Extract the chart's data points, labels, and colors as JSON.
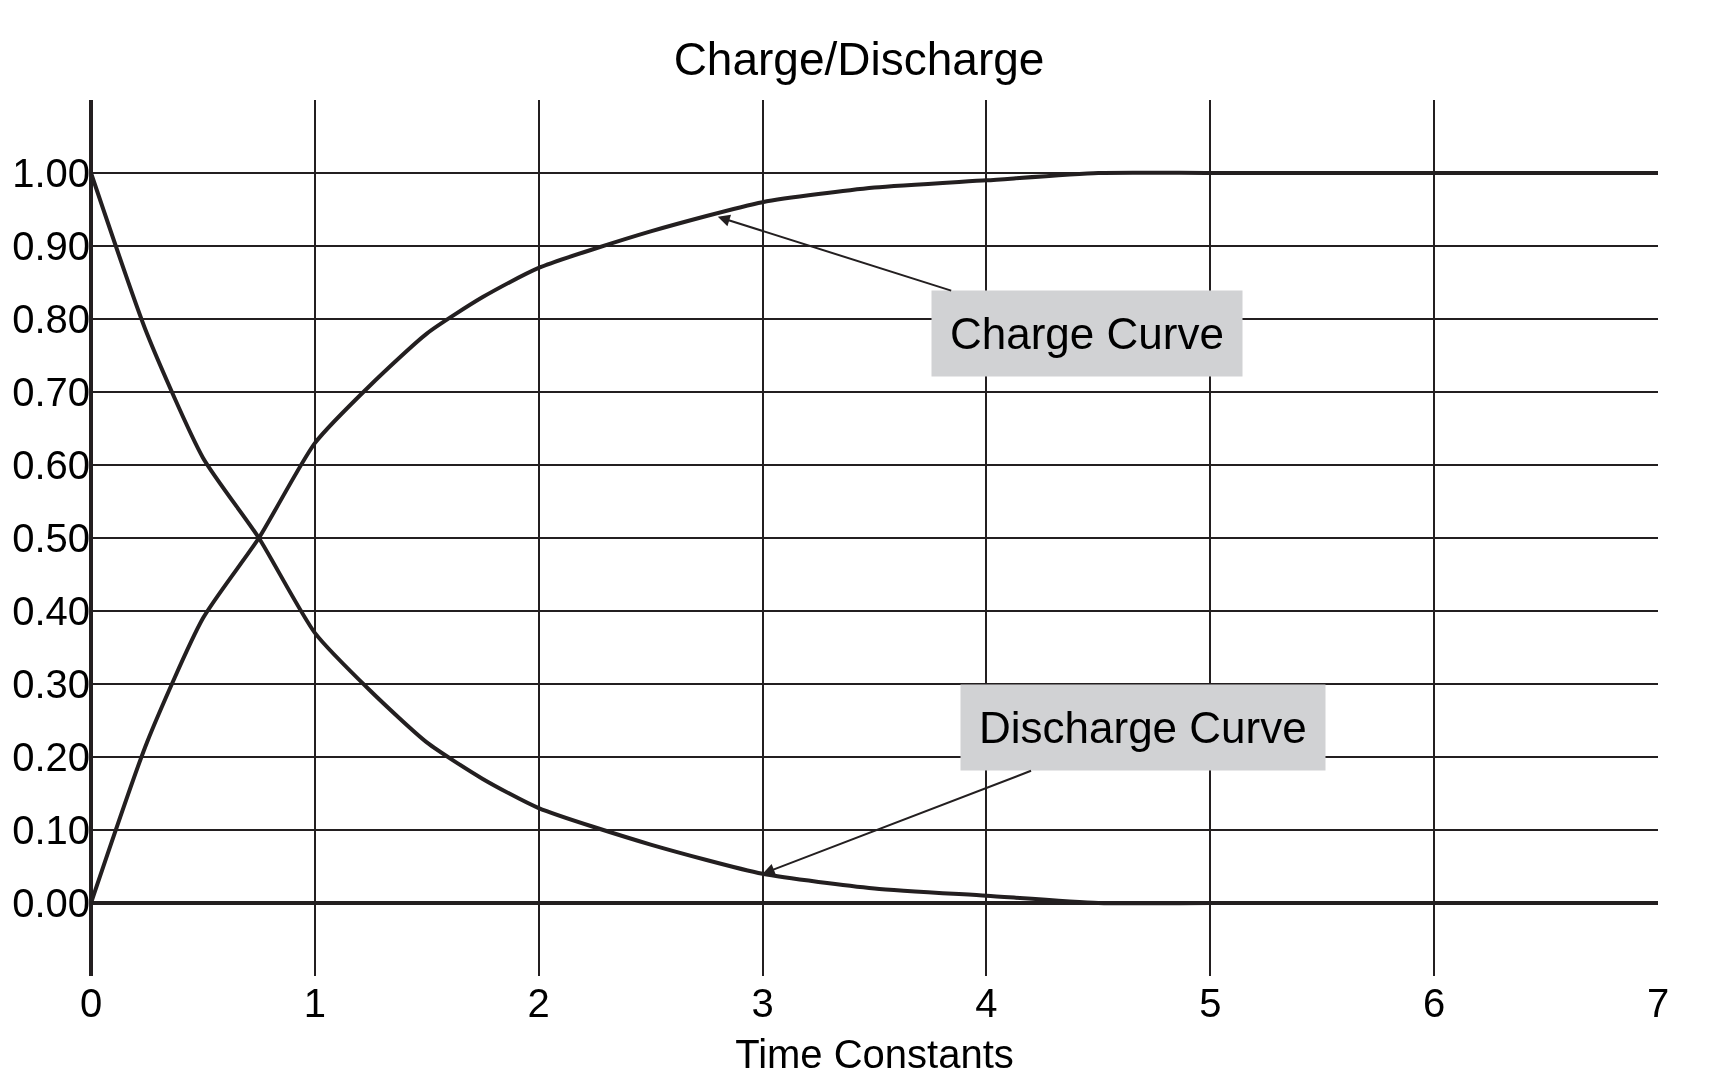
{
  "chart_data": {
    "type": "line",
    "title": "Charge/Discharge",
    "xlabel": "Time Constants",
    "series": [
      {
        "color": "#231f20",
        "x": [
          0,
          0.25,
          0.5,
          0.75,
          1,
          1.25,
          1.5,
          1.75,
          2,
          2.5,
          3,
          3.5,
          4,
          4.5,
          5,
          6,
          7
        ],
        "values": [
          0,
          0.22,
          0.39,
          0.5,
          0.63,
          0.71,
          0.78,
          0.83,
          0.87,
          0.92,
          0.96,
          0.98,
          0.99,
          1.0,
          1.0,
          1.0,
          1.0
        ]
      },
      {
        "color": "#231f20",
        "x": [
          0,
          0.25,
          0.5,
          0.75,
          1,
          1.25,
          1.5,
          1.75,
          2,
          2.5,
          3,
          3.5,
          4,
          4.5,
          5,
          6,
          7
        ],
        "values": [
          1,
          0.78,
          0.61,
          0.5,
          0.37,
          0.29,
          0.22,
          0.17,
          0.13,
          0.08,
          0.04,
          0.02,
          0.01,
          0.0,
          0.0,
          0.0,
          0.0
        ]
      }
    ],
    "annotations": [
      {
        "text": "Charge Curve",
        "x": 2.8,
        "y": 0.94
      },
      {
        "text": "Discharge Curve",
        "x": 3.0,
        "y": 0.04
      }
    ],
    "xlim": [
      0,
      7
    ],
    "xticks": [
      0,
      1,
      2,
      3,
      4,
      5,
      6,
      7
    ],
    "ylim": [
      -0.1,
      1.1
    ],
    "yticks": [
      {
        "value": 0,
        "label": "0.00"
      },
      {
        "value": 0.1,
        "label": "0.10"
      },
      {
        "value": 0.2,
        "label": "0.20"
      },
      {
        "value": 0.3,
        "label": "0.30"
      },
      {
        "value": 0.4,
        "label": "0.40"
      },
      {
        "value": 0.5,
        "label": "0.50"
      },
      {
        "value": 0.6,
        "label": "0.60"
      },
      {
        "value": 0.7,
        "label": "0.70"
      },
      {
        "value": 0.8,
        "label": "0.80"
      },
      {
        "value": 0.9,
        "label": "0.90"
      },
      {
        "value": 1,
        "label": "1.00"
      }
    ],
    "grid": true,
    "marker": "none",
    "line_style": "solid"
  }
}
